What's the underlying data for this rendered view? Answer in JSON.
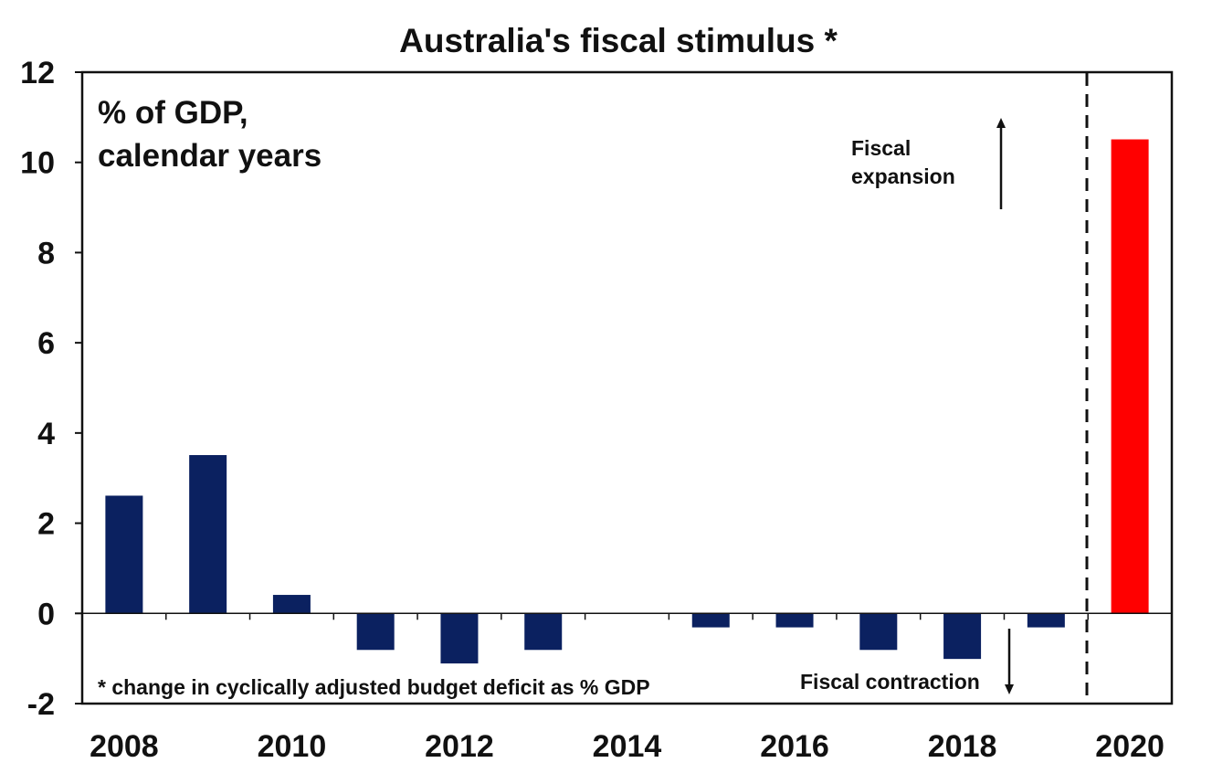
{
  "chart_data": {
    "type": "bar",
    "title": "Australia's fiscal stimulus *",
    "subtitle_lines": [
      "% of GDP,",
      "calendar years"
    ],
    "footnote": "* change in cyclically adjusted budget deficit as % GDP",
    "annotations": {
      "expansion_lines": [
        "Fiscal",
        "expansion"
      ],
      "contraction": "Fiscal contraction"
    },
    "categories": [
      "2008",
      "2009",
      "2010",
      "2011",
      "2012",
      "2013",
      "2014",
      "2015",
      "2016",
      "2017",
      "2018",
      "2019",
      "2020"
    ],
    "values": [
      2.6,
      3.5,
      0.4,
      -0.8,
      -1.1,
      -0.8,
      0,
      -0.3,
      -0.3,
      -0.8,
      -1.0,
      -0.3,
      10.5
    ],
    "x_tick_labels": [
      "2008",
      "2010",
      "2012",
      "2014",
      "2016",
      "2018",
      "2020"
    ],
    "y_ticks": [
      "12",
      "10",
      "8",
      "6",
      "4",
      "2",
      "0",
      "-2"
    ],
    "ylim": [
      -2,
      12
    ],
    "divider_between": [
      "2019",
      "2020"
    ],
    "colors": {
      "bar": "#0b2160",
      "highlight": "#ff0000",
      "highlight_category": "2020"
    },
    "grid": false
  }
}
